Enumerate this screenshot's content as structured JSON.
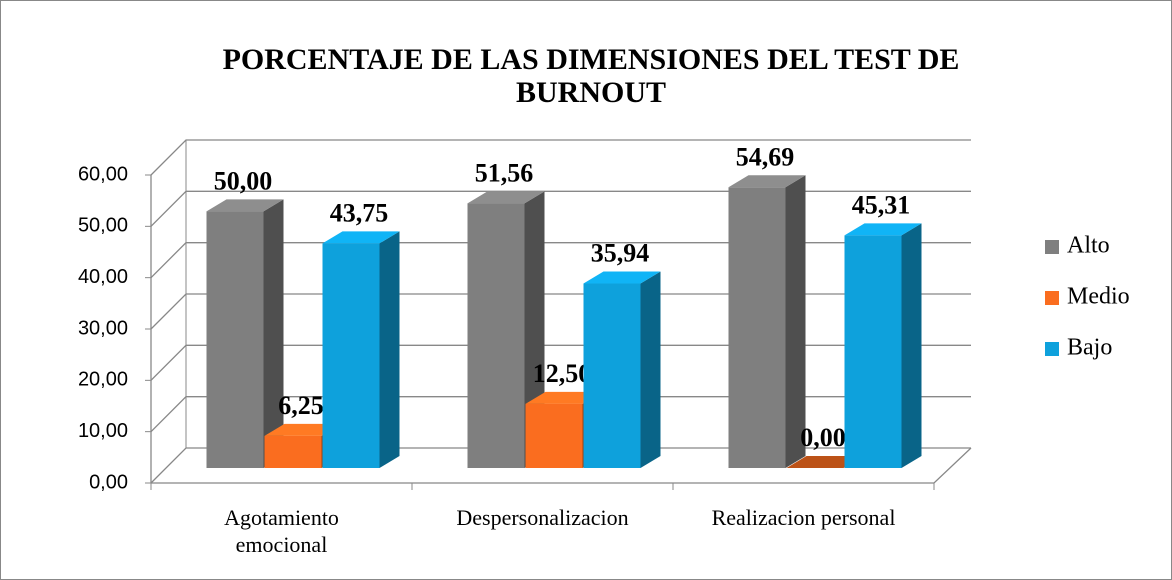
{
  "chart_data": {
    "type": "bar3d",
    "title": "PORCENTAJE DE LAS DIMENSIONES DEL TEST DE BURNOUT",
    "categories": [
      "Agotamiento emocional",
      "Despersonalizacion",
      "Realizacion personal"
    ],
    "series": [
      {
        "name": "Alto",
        "color": "#7f7f7f",
        "values": [
          50.0,
          51.56,
          54.69
        ],
        "value_labels": [
          "50,00",
          "51,56",
          "54,69"
        ]
      },
      {
        "name": "Medio",
        "color": "#fa6d1f",
        "values": [
          6.25,
          12.5,
          0.0
        ],
        "value_labels": [
          "6,25",
          "12,50",
          "0,00"
        ]
      },
      {
        "name": "Bajo",
        "color": "#0ea1dc",
        "values": [
          43.75,
          35.94,
          45.31
        ],
        "value_labels": [
          "43,75",
          "35,94",
          "45,31"
        ]
      }
    ],
    "ylim": [
      0,
      60
    ],
    "yticks": [
      {
        "value": 0,
        "label": "0,00"
      },
      {
        "value": 10,
        "label": "10,00"
      },
      {
        "value": 20,
        "label": "20,00"
      },
      {
        "value": 30,
        "label": "30,00"
      },
      {
        "value": 40,
        "label": "40,00"
      },
      {
        "value": 50,
        "label": "50,00"
      },
      {
        "value": 60,
        "label": "60,00"
      }
    ],
    "grid": true,
    "legend": "right"
  }
}
